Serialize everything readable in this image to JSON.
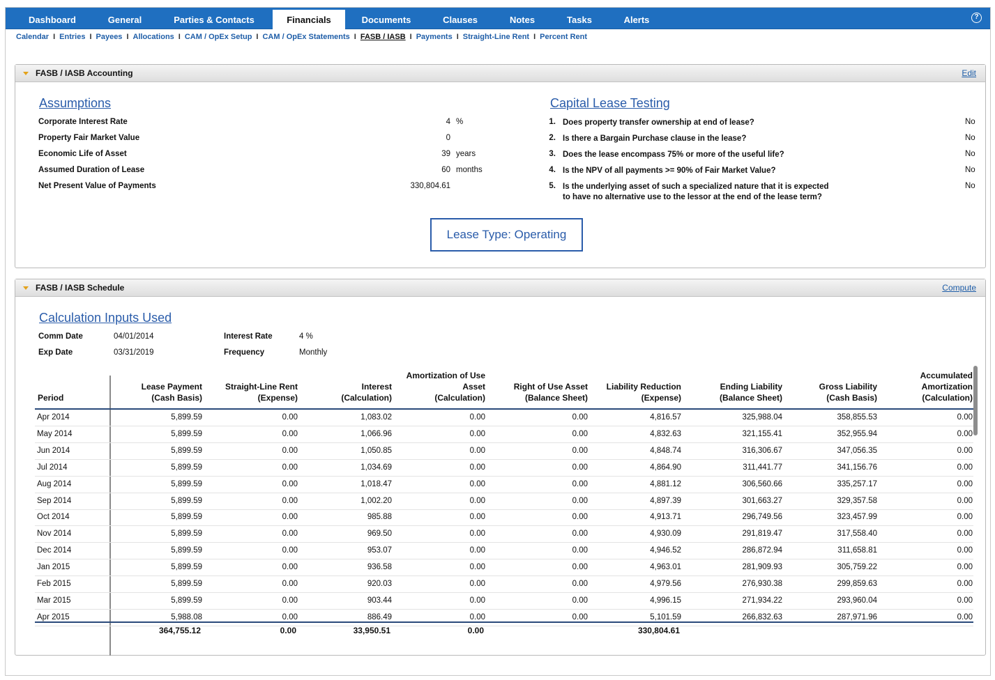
{
  "tabs": [
    {
      "label": "Dashboard",
      "active": false
    },
    {
      "label": "General",
      "active": false
    },
    {
      "label": "Parties & Contacts",
      "active": false
    },
    {
      "label": "Financials",
      "active": true
    },
    {
      "label": "Documents",
      "active": false
    },
    {
      "label": "Clauses",
      "active": false
    },
    {
      "label": "Notes",
      "active": false
    },
    {
      "label": "Tasks",
      "active": false
    },
    {
      "label": "Alerts",
      "active": false
    }
  ],
  "help_icon": "?",
  "subnav": [
    {
      "label": "Calendar",
      "current": false
    },
    {
      "label": "Entries",
      "current": false
    },
    {
      "label": "Payees",
      "current": false
    },
    {
      "label": "Allocations",
      "current": false
    },
    {
      "label": "CAM / OpEx Setup",
      "current": false
    },
    {
      "label": "CAM / OpEx Statements",
      "current": false
    },
    {
      "label": "FASB / IASB",
      "current": true
    },
    {
      "label": "Payments",
      "current": false
    },
    {
      "label": "Straight-Line Rent",
      "current": false
    },
    {
      "label": "Percent Rent",
      "current": false
    }
  ],
  "accounting": {
    "title": "FASB / IASB Accounting",
    "edit_label": "Edit",
    "assumptions_title": "Assumptions",
    "assumptions": [
      {
        "label": "Corporate Interest Rate",
        "value": "4",
        "unit": "%"
      },
      {
        "label": "Property Fair Market Value",
        "value": "0",
        "unit": ""
      },
      {
        "label": "Economic Life of Asset",
        "value": "39",
        "unit": "years"
      },
      {
        "label": "Assumed Duration of Lease",
        "value": "60",
        "unit": "months"
      },
      {
        "label": "Net Present Value of Payments",
        "value": "330,804.61",
        "unit": ""
      }
    ],
    "testing_title": "Capital Lease Testing",
    "questions": [
      {
        "num": "1.",
        "text": "Does property transfer ownership at end of lease?",
        "answer": "No"
      },
      {
        "num": "2.",
        "text": "Is there a Bargain Purchase clause in the lease?",
        "answer": "No"
      },
      {
        "num": "3.",
        "text": "Does the lease encompass 75% or more of the useful life?",
        "answer": "No"
      },
      {
        "num": "4.",
        "text": "Is the NPV of all payments >= 90% of Fair Market Value?",
        "answer": "No"
      },
      {
        "num": "5.",
        "text": "Is the underlying asset of such a specialized nature that it is expected to have no alternative use to the lessor at the end of the lease term?",
        "answer": "No"
      }
    ],
    "lease_type": "Lease Type: Operating"
  },
  "schedule": {
    "title": "FASB / IASB Schedule",
    "compute_label": "Compute",
    "inputs_title": "Calculation Inputs Used",
    "inputs": {
      "comm_date_label": "Comm Date",
      "comm_date": "04/01/2014",
      "exp_date_label": "Exp Date",
      "exp_date": "03/31/2019",
      "interest_rate_label": "Interest Rate",
      "interest_rate": "4 %",
      "frequency_label": "Frequency",
      "frequency": "Monthly"
    },
    "columns": [
      [
        "Period"
      ],
      [
        "Lease Payment",
        "(Cash Basis)"
      ],
      [
        "Straight-Line Rent",
        "(Expense)"
      ],
      [
        "Interest",
        "(Calculation)"
      ],
      [
        "Amortization of Use",
        "Asset",
        "(Calculation)"
      ],
      [
        "Right of Use Asset",
        "(Balance Sheet)"
      ],
      [
        "Liability Reduction",
        "(Expense)"
      ],
      [
        "Ending Liability",
        "(Balance Sheet)"
      ],
      [
        "Gross Liability",
        "(Cash Basis)"
      ],
      [
        "Accumulated",
        "Amortization",
        "(Calculation)"
      ]
    ],
    "rows": [
      [
        "Apr 2014",
        "5,899.59",
        "0.00",
        "1,083.02",
        "0.00",
        "0.00",
        "4,816.57",
        "325,988.04",
        "358,855.53",
        "0.00"
      ],
      [
        "May 2014",
        "5,899.59",
        "0.00",
        "1,066.96",
        "0.00",
        "0.00",
        "4,832.63",
        "321,155.41",
        "352,955.94",
        "0.00"
      ],
      [
        "Jun 2014",
        "5,899.59",
        "0.00",
        "1,050.85",
        "0.00",
        "0.00",
        "4,848.74",
        "316,306.67",
        "347,056.35",
        "0.00"
      ],
      [
        "Jul 2014",
        "5,899.59",
        "0.00",
        "1,034.69",
        "0.00",
        "0.00",
        "4,864.90",
        "311,441.77",
        "341,156.76",
        "0.00"
      ],
      [
        "Aug 2014",
        "5,899.59",
        "0.00",
        "1,018.47",
        "0.00",
        "0.00",
        "4,881.12",
        "306,560.66",
        "335,257.17",
        "0.00"
      ],
      [
        "Sep 2014",
        "5,899.59",
        "0.00",
        "1,002.20",
        "0.00",
        "0.00",
        "4,897.39",
        "301,663.27",
        "329,357.58",
        "0.00"
      ],
      [
        "Oct 2014",
        "5,899.59",
        "0.00",
        "985.88",
        "0.00",
        "0.00",
        "4,913.71",
        "296,749.56",
        "323,457.99",
        "0.00"
      ],
      [
        "Nov 2014",
        "5,899.59",
        "0.00",
        "969.50",
        "0.00",
        "0.00",
        "4,930.09",
        "291,819.47",
        "317,558.40",
        "0.00"
      ],
      [
        "Dec 2014",
        "5,899.59",
        "0.00",
        "953.07",
        "0.00",
        "0.00",
        "4,946.52",
        "286,872.94",
        "311,658.81",
        "0.00"
      ],
      [
        "Jan 2015",
        "5,899.59",
        "0.00",
        "936.58",
        "0.00",
        "0.00",
        "4,963.01",
        "281,909.93",
        "305,759.22",
        "0.00"
      ],
      [
        "Feb 2015",
        "5,899.59",
        "0.00",
        "920.03",
        "0.00",
        "0.00",
        "4,979.56",
        "276,930.38",
        "299,859.63",
        "0.00"
      ],
      [
        "Mar 2015",
        "5,899.59",
        "0.00",
        "903.44",
        "0.00",
        "0.00",
        "4,996.15",
        "271,934.22",
        "293,960.04",
        "0.00"
      ],
      [
        "Apr 2015",
        "5,988.08",
        "0.00",
        "886.49",
        "0.00",
        "0.00",
        "5,101.59",
        "266,832.63",
        "287,971.96",
        "0.00"
      ]
    ],
    "totals": [
      "",
      "364,755.12",
      "0.00",
      "33,950.51",
      "0.00",
      "",
      "330,804.61",
      "",
      "",
      ""
    ]
  }
}
